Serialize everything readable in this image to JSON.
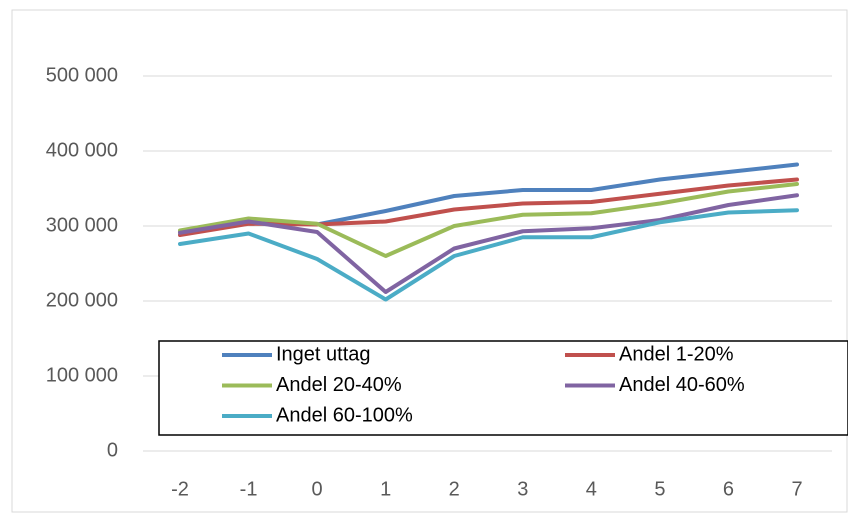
{
  "chart_data": {
    "type": "line",
    "categories": [
      "-2",
      "-1",
      "0",
      "1",
      "2",
      "3",
      "4",
      "5",
      "6",
      "7"
    ],
    "series": [
      {
        "name": "Inget uttag",
        "color": "#4f81bd",
        "values": [
          292000,
          307000,
          302000,
          320000,
          340000,
          348000,
          348000,
          362000,
          372000,
          382000
        ]
      },
      {
        "name": "Andel 1-20%",
        "color": "#c0504d",
        "values": [
          288000,
          303000,
          302000,
          306000,
          322000,
          330000,
          332000,
          343000,
          354000,
          362000
        ]
      },
      {
        "name": "Andel 20-40%",
        "color": "#9bbb59",
        "values": [
          294000,
          310000,
          303000,
          260000,
          300000,
          315000,
          317000,
          330000,
          346000,
          356000
        ]
      },
      {
        "name": "Andel 40-60%",
        "color": "#8064a2",
        "values": [
          291000,
          306000,
          292000,
          212000,
          270000,
          293000,
          297000,
          308000,
          328000,
          341000
        ]
      },
      {
        "name": "Andel 60-100%",
        "color": "#4bacc6",
        "values": [
          276000,
          290000,
          256000,
          202000,
          260000,
          285000,
          285000,
          305000,
          318000,
          321000
        ]
      }
    ],
    "ylim": [
      0,
      500000
    ],
    "yticks": [
      0,
      {
        "value": 100000,
        "label": "100 000"
      },
      {
        "value": 200000,
        "label": "200 000"
      },
      {
        "value": 300000,
        "label": "300 000"
      },
      {
        "value": 400000,
        "label": "400 000"
      },
      {
        "value": 500000,
        "label": "500 000"
      }
    ],
    "grid": true
  }
}
